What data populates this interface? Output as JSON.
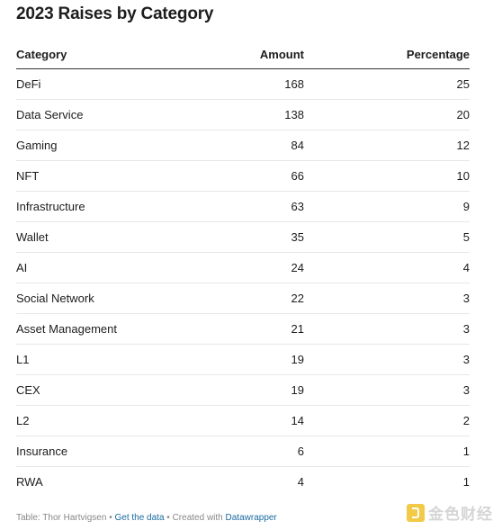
{
  "chart_data": {
    "type": "table",
    "title": "2023 Raises by Category",
    "columns": [
      "Category",
      "Amount",
      "Percentage"
    ],
    "rows": [
      {
        "category": "DeFi",
        "amount": "168",
        "percentage": "25"
      },
      {
        "category": "Data Service",
        "amount": "138",
        "percentage": "20"
      },
      {
        "category": "Gaming",
        "amount": "84",
        "percentage": "12"
      },
      {
        "category": "NFT",
        "amount": "66",
        "percentage": "10"
      },
      {
        "category": "Infrastructure",
        "amount": "63",
        "percentage": "9"
      },
      {
        "category": "Wallet",
        "amount": "35",
        "percentage": "5"
      },
      {
        "category": "AI",
        "amount": "24",
        "percentage": "4"
      },
      {
        "category": "Social Network",
        "amount": "22",
        "percentage": "3"
      },
      {
        "category": "Asset Management",
        "amount": "21",
        "percentage": "3"
      },
      {
        "category": "L1",
        "amount": "19",
        "percentage": "3"
      },
      {
        "category": "CEX",
        "amount": "19",
        "percentage": "3"
      },
      {
        "category": "L2",
        "amount": "14",
        "percentage": "2"
      },
      {
        "category": "Insurance",
        "amount": "6",
        "percentage": "1"
      },
      {
        "category": "RWA",
        "amount": "4",
        "percentage": "1"
      }
    ]
  },
  "footer": {
    "source": "Table: Thor Hartvigsen",
    "sep1": " • ",
    "get_data": "Get the data",
    "sep2": " • Created with ",
    "tool": "Datawrapper"
  },
  "watermark": {
    "text": "金色财经",
    "logo_icon": "golden-finance-logo-icon"
  },
  "colors": {
    "text": "#1d1d1d",
    "header_rule": "#333333",
    "row_rule": "#e6e6e6",
    "link": "#1a6aa0",
    "footer": "#888888"
  }
}
